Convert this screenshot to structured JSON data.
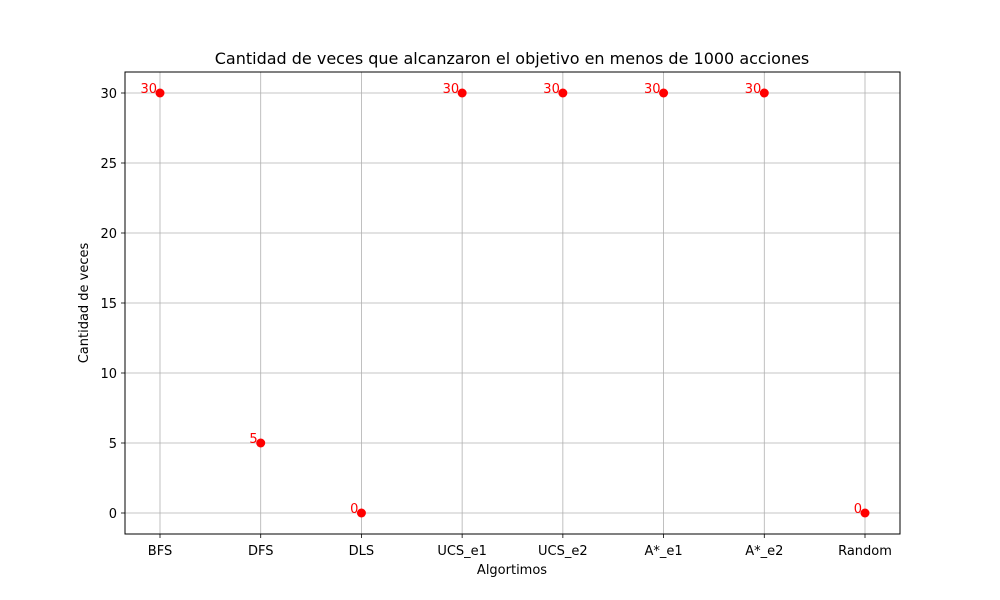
{
  "chart_data": {
    "type": "scatter",
    "title": "Cantidad de veces que alcanzaron el objetivo en menos de 1000 acciones",
    "xlabel": "Algortimos",
    "ylabel": "Cantidad de veces",
    "categories": [
      "BFS",
      "DFS",
      "DLS",
      "UCS_e1",
      "UCS_e2",
      "A*_e1",
      "A*_e2",
      "Random"
    ],
    "values": [
      30,
      5,
      0,
      30,
      30,
      30,
      30,
      0
    ],
    "data_labels": [
      "30",
      "5",
      "0",
      "30",
      "30",
      "30",
      "30",
      "0"
    ],
    "ylim": [
      -1.5,
      31.5
    ],
    "yticks": [
      0,
      5,
      10,
      15,
      20,
      25,
      30
    ],
    "grid": true,
    "marker_color": "#ff0000",
    "label_color": "#ff0000"
  }
}
